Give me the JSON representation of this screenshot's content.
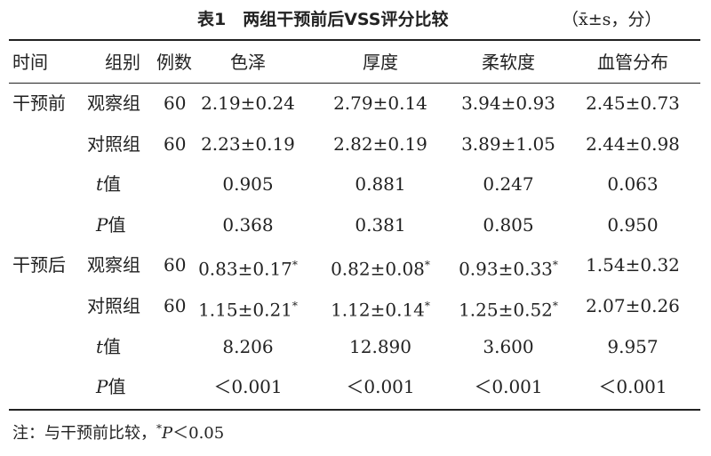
{
  "title": "表1　两组干预前后VSS评分比较",
  "unit": "（x̄±s，分）",
  "table": {
    "header": [
      "时间",
      "组别",
      "例数",
      "色泽",
      "厚度",
      "柔软度",
      "血管分布"
    ],
    "rows": [
      {
        "period": "干预前",
        "group": "观察组",
        "n": "60",
        "values": [
          "2.19±0.24",
          "2.79±0.14",
          "3.94±0.93",
          "2.45±0.73"
        ]
      },
      {
        "group": "对照组",
        "n": "60",
        "values": [
          "2.23±0.19",
          "2.82±0.19",
          "3.89±1.05",
          "2.44±0.98"
        ]
      },
      {
        "stat": {
          "var": "t",
          "text": "值"
        },
        "values": [
          "0.905",
          "0.881",
          "0.247",
          "0.063"
        ]
      },
      {
        "stat": {
          "var": "P",
          "text": "值"
        },
        "values": [
          "0.368",
          "0.381",
          "0.805",
          "0.950"
        ]
      },
      {
        "period": "干预后",
        "group": "观察组",
        "n": "60",
        "values": [
          {
            "text": "0.83±0.17",
            "sup": "*"
          },
          {
            "text": "0.82±0.08",
            "sup": "*"
          },
          {
            "text": "0.93±0.33",
            "sup": "*"
          },
          "1.54±0.32"
        ]
      },
      {
        "group": "对照组",
        "n": "60",
        "values": [
          {
            "text": "1.15±0.21",
            "sup": "*"
          },
          {
            "text": "1.12±0.14",
            "sup": "*"
          },
          {
            "text": "1.25±0.52",
            "sup": "*"
          },
          "2.07±0.26"
        ]
      },
      {
        "stat": {
          "var": "t",
          "text": "值"
        },
        "values": [
          "8.206",
          "12.890",
          "3.600",
          "9.957"
        ]
      },
      {
        "stat": {
          "var": "P",
          "text": "值"
        },
        "values": [
          "＜0.001",
          "＜0.001",
          "＜0.001",
          "＜0.001"
        ]
      }
    ]
  },
  "note": {
    "prefix": "注：与干预前比较，",
    "sup": "*",
    "var": "P",
    "suffix": "＜0.05"
  }
}
